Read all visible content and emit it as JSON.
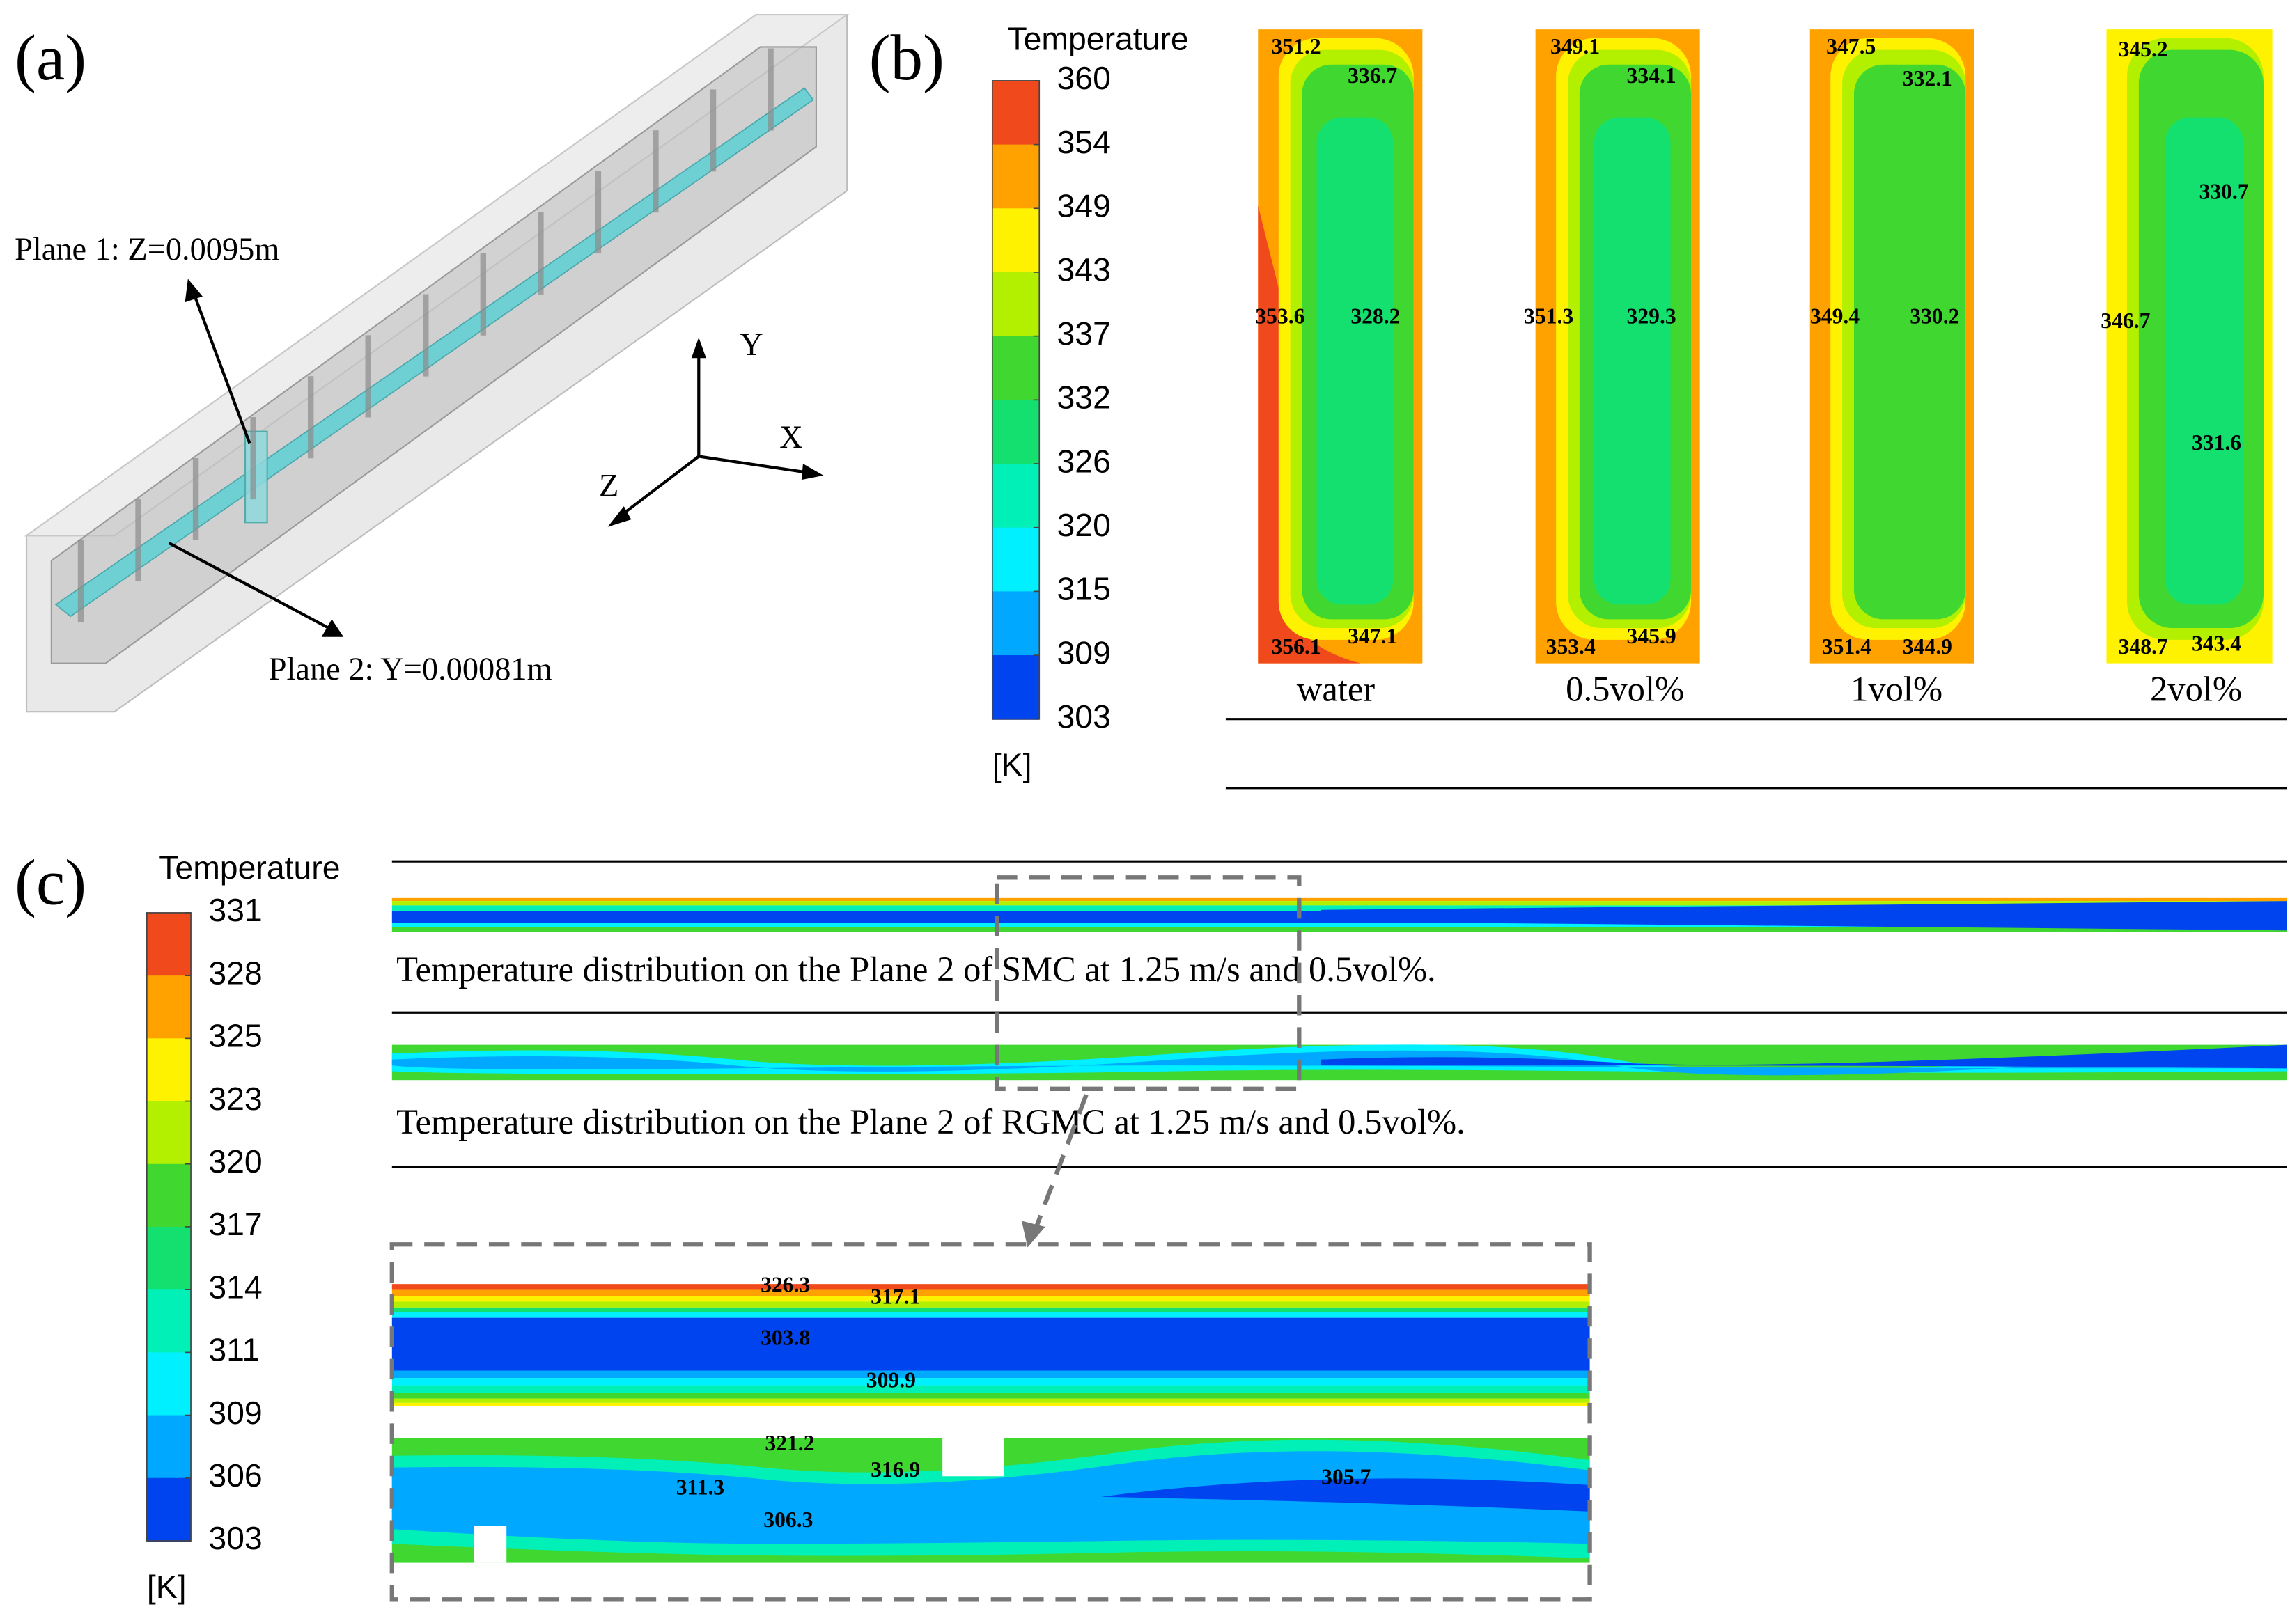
{
  "panels": {
    "a": {
      "label": "(a)",
      "plane1": "Plane  1: Z=0.0095m",
      "plane2": "Plane  2: Y=0.00081m",
      "axes": [
        "Y",
        "X",
        "Z"
      ]
    },
    "b": {
      "label": "(b)",
      "colorbar": {
        "title": "Temperature",
        "unit": "[K]",
        "ticks": [
          360,
          354,
          349,
          343,
          337,
          332,
          326,
          320,
          315,
          309,
          303
        ],
        "colors": [
          "#f04a1c",
          "#ffa200",
          "#fff200",
          "#b2f000",
          "#40d830",
          "#14e070",
          "#00f0b8",
          "#00f0ff",
          "#00a8ff",
          "#0044f0"
        ]
      },
      "cases": [
        {
          "name": "water",
          "labels": [
            351.2,
            336.7,
            353.6,
            328.2,
            356.1,
            347.1
          ]
        },
        {
          "name": "0.5vol%",
          "labels": [
            349.1,
            334.1,
            351.3,
            329.3,
            353.4,
            345.9
          ]
        },
        {
          "name": "1vol%",
          "labels": [
            347.5,
            332.1,
            349.4,
            330.2,
            351.4,
            344.9
          ]
        },
        {
          "name": "2vol%",
          "labels": [
            345.2,
            330.7,
            346.7,
            331.6,
            348.7,
            343.4
          ]
        }
      ]
    },
    "c": {
      "label": "(c)",
      "colorbar": {
        "title": "Temperature",
        "unit": "[K]",
        "ticks": [
          331,
          328,
          325,
          323,
          320,
          317,
          314,
          311,
          309,
          306,
          303
        ],
        "colors": [
          "#f04a1c",
          "#ffa200",
          "#fff200",
          "#b2f000",
          "#40d830",
          "#14e070",
          "#00f0b8",
          "#00f0ff",
          "#00a8ff",
          "#0044f0"
        ]
      },
      "captions": [
        "Temperature  distribution  on the Plane  2 of SMC at 1.25 m/s  and 0.5vol%.",
        "Temperature  distribution  on the Plane  2 of RGMC at 1.25 m/s  and 0.5vol%."
      ],
      "zoom_smc_labels": [
        326.3,
        317.1,
        303.8,
        309.9
      ],
      "zoom_rgmc_labels": [
        321.2,
        316.9,
        311.3,
        306.3,
        305.7
      ]
    }
  }
}
